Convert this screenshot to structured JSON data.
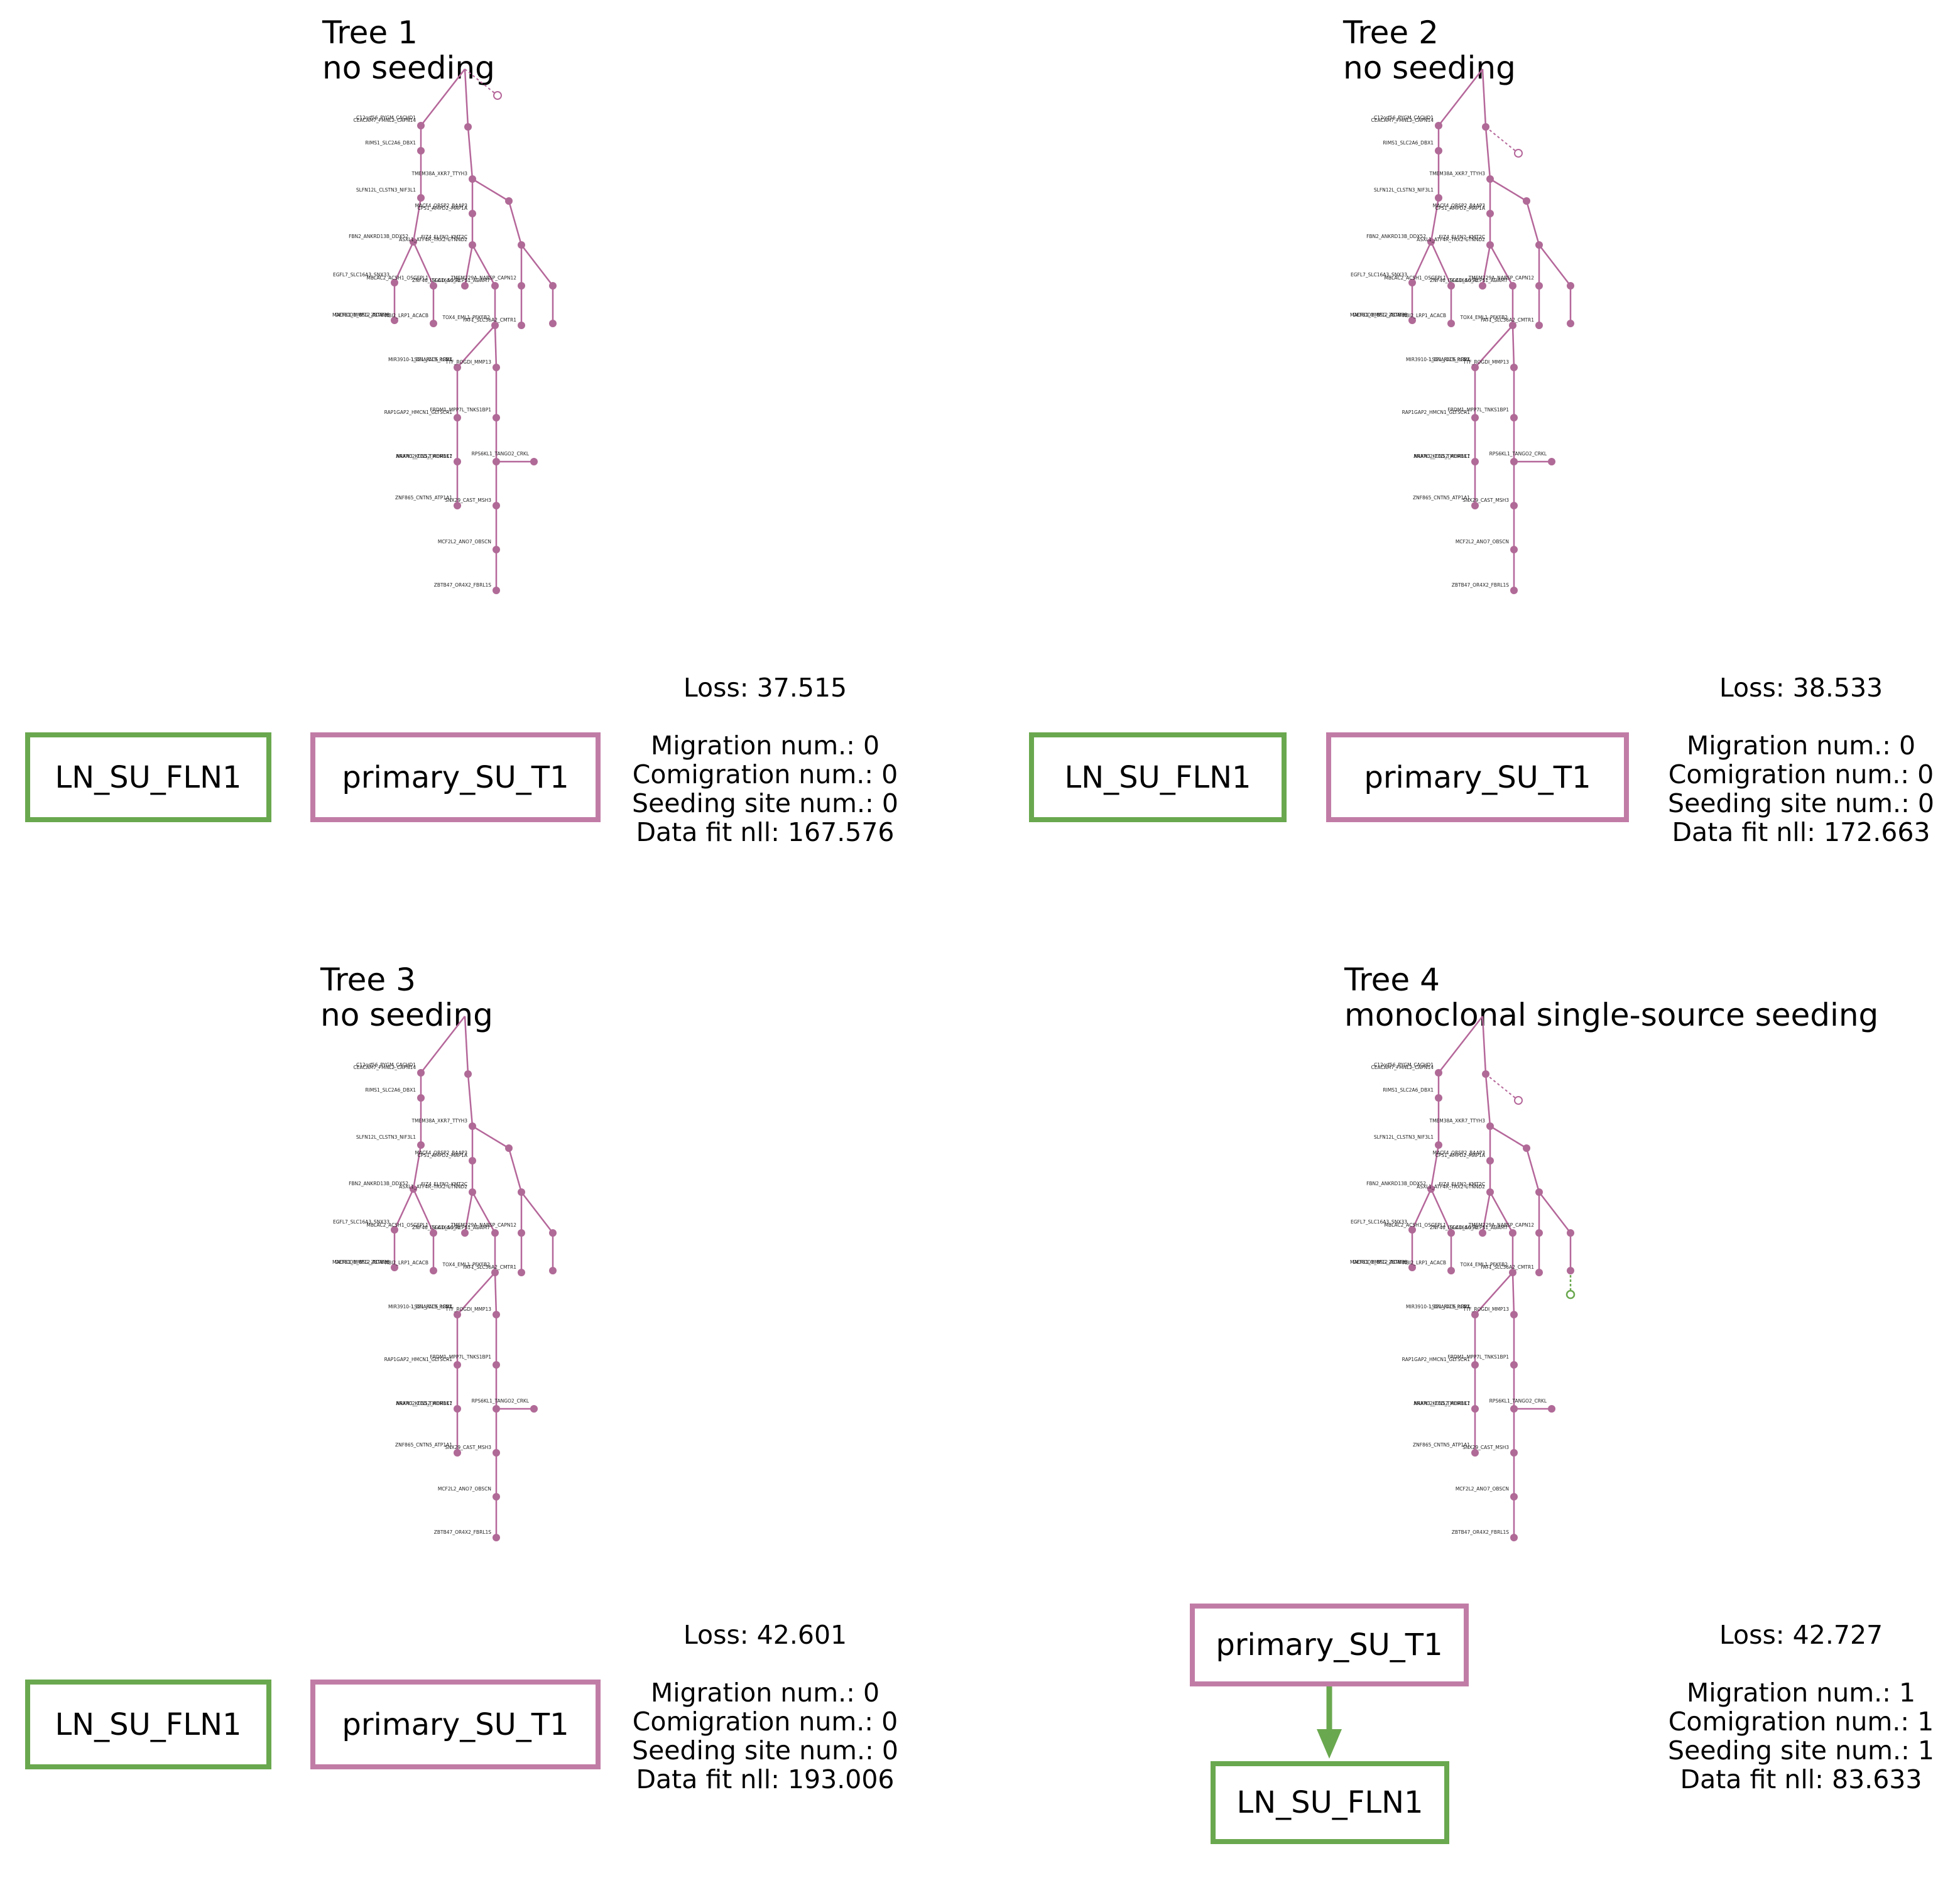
{
  "colors": {
    "primary": "#c17ca6",
    "metastasis": "#6aa84f",
    "edge": "#b5679a",
    "node": "#b06a97"
  },
  "panels": [
    {
      "title": "Tree 1",
      "subtitle": "no seeding",
      "loss": "Loss: 37.515",
      "migration": "Migration num.: 0",
      "comigration": "Comigration num.: 0",
      "seeding_sites": "Seeding site num.: 0",
      "data_fit": "Data fit nll: 167.576",
      "site_metastasis": "LN_SU_FLN1",
      "site_primary": "primary_SU_T1"
    },
    {
      "title": "Tree 2",
      "subtitle": "no seeding",
      "loss": "Loss: 38.533",
      "migration": "Migration num.: 0",
      "comigration": "Comigration num.: 0",
      "seeding_sites": "Seeding site num.: 0",
      "data_fit": "Data fit nll: 172.663",
      "site_metastasis": "LN_SU_FLN1",
      "site_primary": "primary_SU_T1"
    },
    {
      "title": "Tree 3",
      "subtitle": "no seeding",
      "loss": "Loss: 42.601",
      "migration": "Migration num.: 0",
      "comigration": "Comigration num.: 0",
      "seeding_sites": "Seeding site num.: 0",
      "data_fit": "Data fit nll: 193.006",
      "site_metastasis": "LN_SU_FLN1",
      "site_primary": "primary_SU_T1"
    },
    {
      "title": "Tree 4",
      "subtitle": "monoclonal single-source seeding",
      "loss": "Loss: 42.727",
      "migration": "Migration num.: 1",
      "comigration": "Comigration num.: 1",
      "seeding_sites": "Seeding site num.: 1",
      "data_fit": "Data fit nll: 83.633",
      "site_metastasis": "LN_SU_FLN1",
      "site_primary": "primary_SU_T1"
    }
  ],
  "tree_labels": [
    "C12orf56_PYGM_CACHD1",
    "CEACAM7_FMNL2_CAPN14",
    "RIMS1_SLC2A6_DBX1",
    "TMEM38A_XKR7_TTYH3",
    "SLFN12L_CLSTN3_NIF3L1",
    "CPS1_AMPD2_MAP1A",
    "MACF4_ORSP2_BAAP3",
    "FBN2_ANKRD13B_DDX52",
    "FIZ4_ELFN2_KMT2C",
    "ASXL1_ATF4R_TRX2-CTNND2",
    "EGFL7_SLC16A3_SNX33",
    "SLC16A6_REPS1_ADAM7",
    "MBLAC2_ACSH1_OSGEPL1",
    "ZNF46_ITGAD_SOS1",
    "TMEM229A_NABSP_CAPN12",
    "DEFB1_MMP12_ADAM6",
    "TOX4_EML1_PFKFB2",
    "MACROD1_BSG_ZBTB38",
    "ABI2_LRP1_ACACB",
    "FAT1_SLC36A2_CMTR1",
    "LSG1_PACS_LRP1",
    "TTF_ROGDI_MMP13",
    "MIR3910-1_DNAJC19_PCNX",
    "RAP1GAP2_HMCN1_GLTSCR1",
    "FRDM1_MPP7L_TNKS1BP1",
    "NRXN3_KCNS2_ADRBK1",
    "RPS6KL1_TANGO2_CRKL",
    "ANAPC2_FCD_TMEM117",
    "ZNF865_CNTN5_ATP1A1",
    "SNX29_CAST_MSH3",
    "MCF2L2_ANO7_OBSCN",
    "ZBTB47_OR4X2_FBRL1S"
  ]
}
